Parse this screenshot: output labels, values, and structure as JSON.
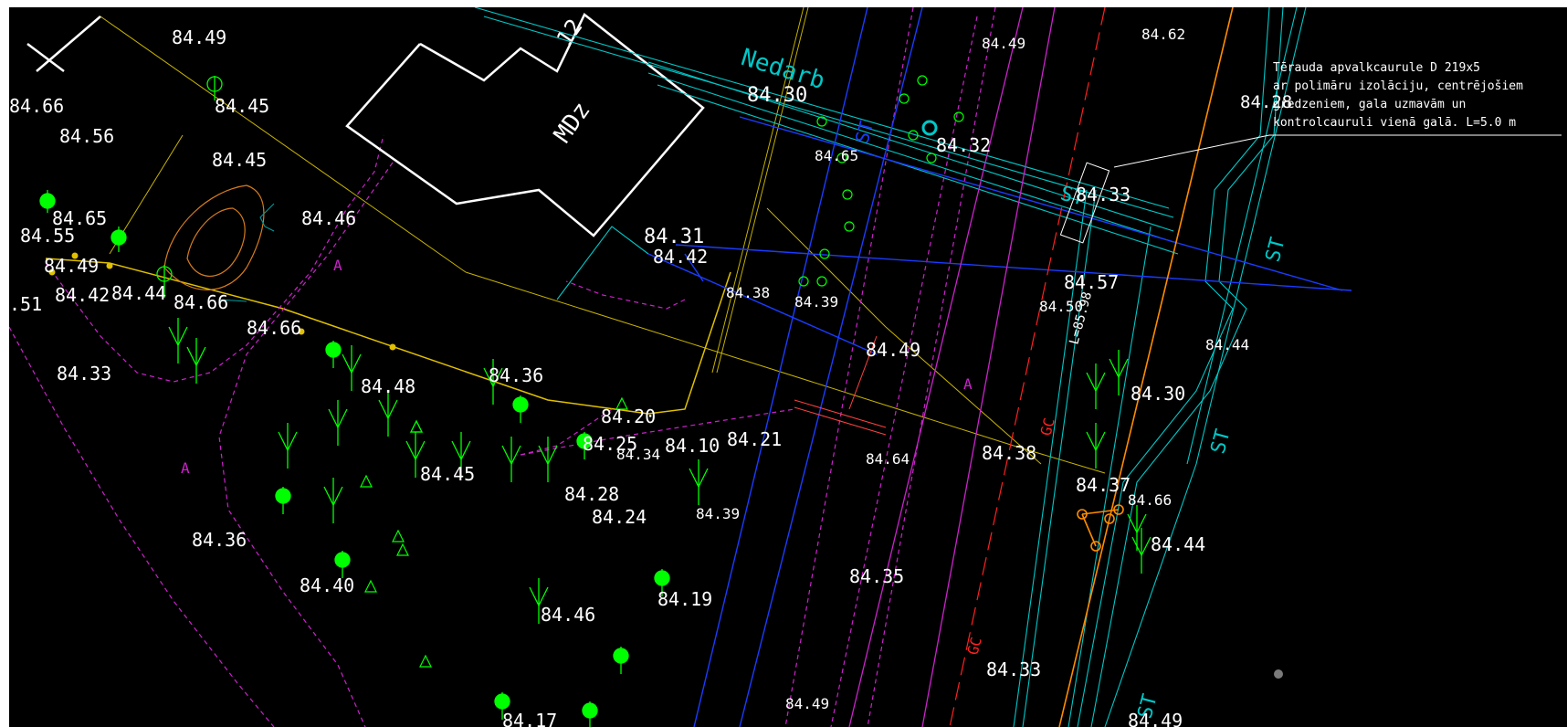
{
  "colors": {
    "background": "#000000",
    "border": "#ffffff",
    "text": "#ffffff",
    "building": "#ffffff",
    "pipe": "#00c8c8",
    "property": "#cc22cc",
    "road": "#c8b400",
    "kerb": "#e0c000",
    "water": "#1a3cff",
    "trees": "#00ff00",
    "gas": "#ff2020",
    "orange": "#ff8c00",
    "contour": "#d87c1c",
    "gray": "#7a7a7a"
  },
  "building": {
    "number": "12",
    "code": "MDz"
  },
  "street_label": "Nedarb",
  "callout": {
    "line1": "Tērauda apvalkcaurule D 219x5",
    "line2": "ar polimāru izolāciju, centrējošiem",
    "line3": "gredzeniem, gala uzmavām un",
    "line4": "kontrolcauruli vienā galā. L=5.0 m"
  },
  "zone_labels": [
    "A",
    "A",
    "A"
  ],
  "utility_labels": {
    "st1": "ST",
    "st2": "ST",
    "st3": "ST",
    "st4": "ST",
    "st5": "ST",
    "gas1": "GC",
    "gas2": "GC",
    "length": "L=85.98"
  },
  "elevations": [
    "84.49",
    "84.66",
    "84.45",
    "84.56",
    "84.45",
    "84.65",
    "84.55",
    "84.46",
    "84.49",
    "84.42",
    "84.44",
    "84.66",
    "84.66",
    "84.33",
    "84.48",
    "84.36",
    "84.20",
    "84.25",
    "84.34",
    "84.10",
    "84.21",
    "84.45",
    "84.28",
    "84.24",
    "84.39",
    "84.36",
    "84.40",
    "84.46",
    "84.19",
    "84.17",
    "84.30",
    "84.65",
    "84.31",
    "84.42",
    "84.38",
    "84.39",
    "84.49",
    "84.64",
    "84.35",
    "84.49",
    "84.32",
    "84.49",
    "84.62",
    "84.28",
    "84.33",
    "84.57",
    "84.50",
    "84.44",
    "84.30",
    "84.38",
    "84.37",
    "84.66",
    "84.44",
    "84.33",
    "84.49",
    ".51"
  ]
}
